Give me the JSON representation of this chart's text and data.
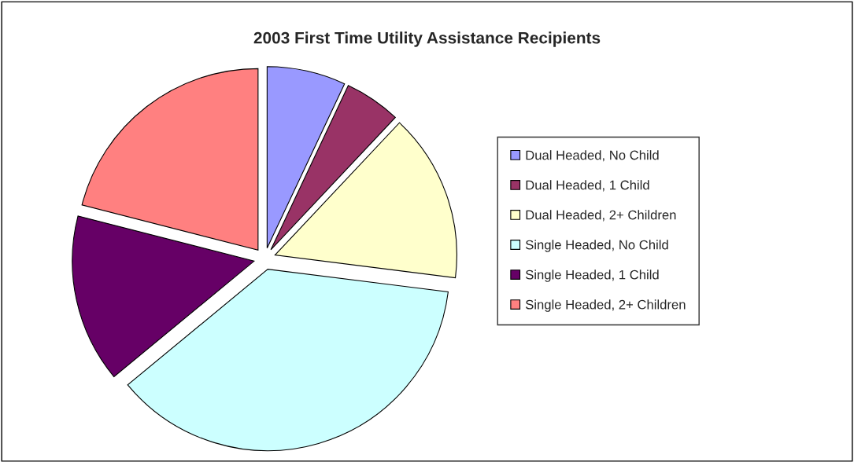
{
  "chart_data": {
    "type": "pie",
    "title": "2003 First Time Utility Assistance Recipients",
    "categories": [
      "Dual Headed, No Child",
      "Dual Headed, 1 Child",
      "Dual Headed, 2+ Children",
      "Single Headed, No Child",
      "Single Headed, 1 Child",
      "Single Headed, 2+ Children"
    ],
    "values": [
      7,
      5,
      15,
      37,
      15,
      21
    ],
    "colors": [
      "#9999ff",
      "#993366",
      "#ffffcc",
      "#ccffff",
      "#660066",
      "#ff8080"
    ],
    "legend": "right"
  }
}
